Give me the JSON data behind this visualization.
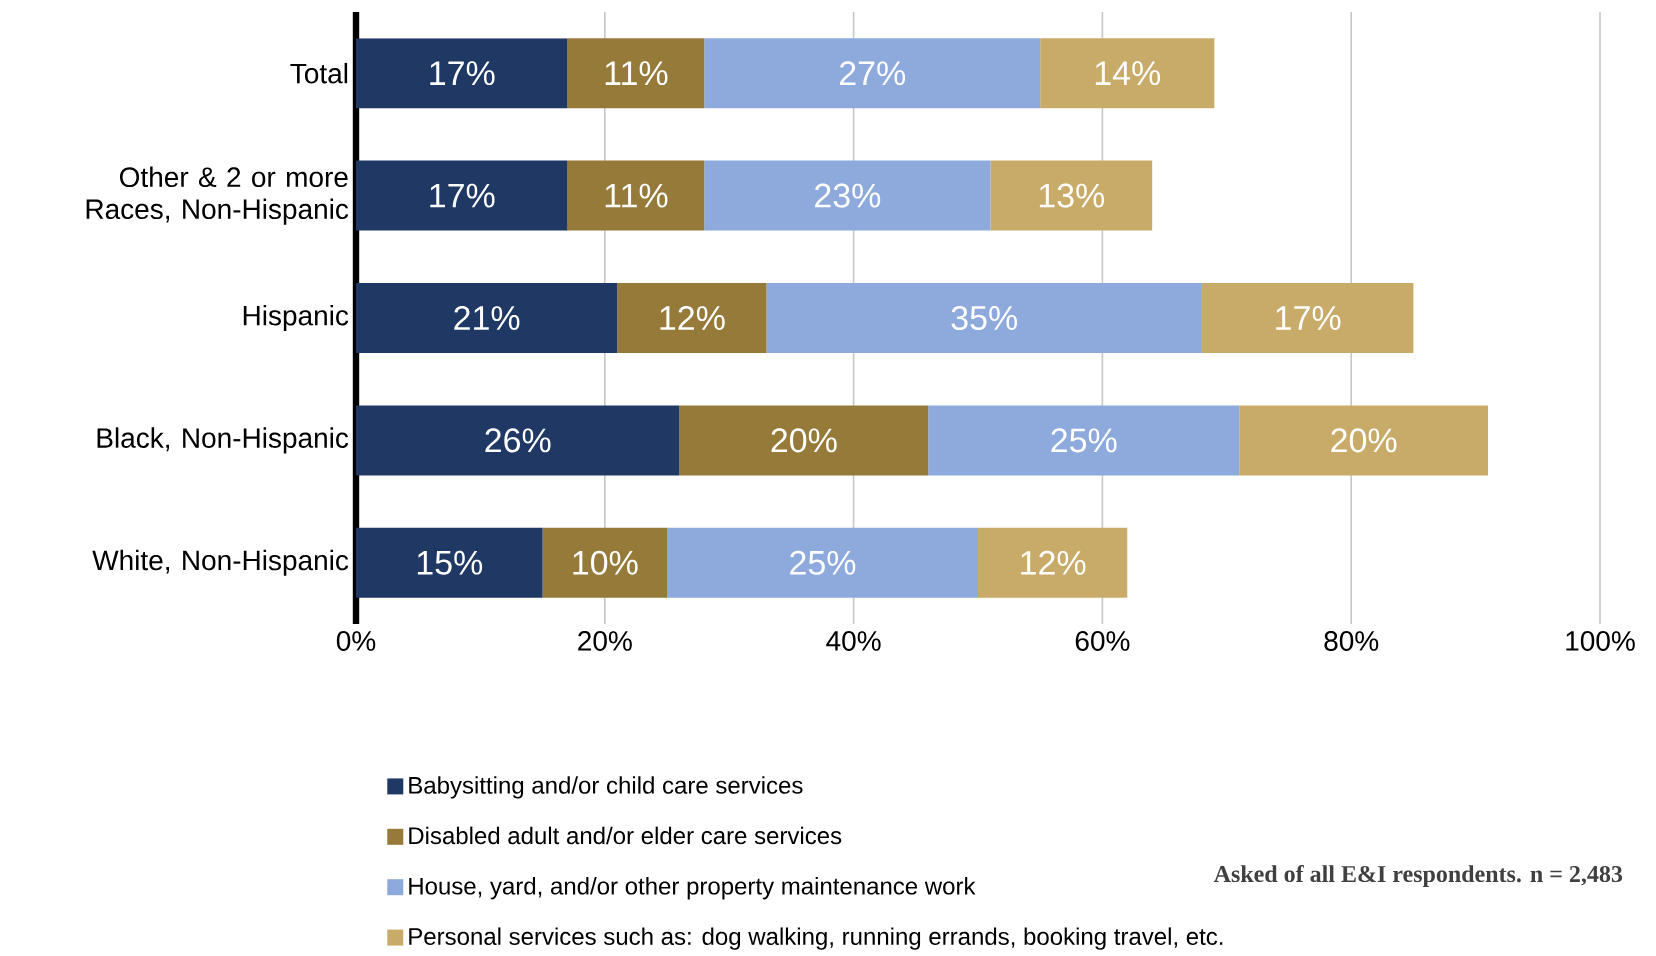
{
  "chart_data": {
    "type": "bar",
    "orientation": "horizontal",
    "stacked": true,
    "categories": [
      "Total",
      "Other & 2 or more Races, Non-Hispanic",
      "Hispanic",
      "Black, Non-Hispanic",
      "White, Non-Hispanic"
    ],
    "series": [
      {
        "name": "Babysitting and/or child care services",
        "color": "#1f3864",
        "values": [
          17,
          17,
          21,
          26,
          15
        ],
        "value_labels": [
          "17%",
          "17%",
          "21%",
          "26%",
          "15%"
        ]
      },
      {
        "name": "Disabled adult and/or elder care services",
        "color": "#967a3a",
        "values": [
          11,
          11,
          12,
          20,
          10
        ],
        "value_labels": [
          "11%",
          "11%",
          "12%",
          "20%",
          "10%"
        ]
      },
      {
        "name": "House, yard, and/or other property maintenance work",
        "color": "#8eaadc",
        "values": [
          27,
          23,
          35,
          25,
          25
        ],
        "value_labels": [
          "27%",
          "23%",
          "35%",
          "25%",
          "25%"
        ]
      },
      {
        "name": "Personal services such as: dog walking, running errands, booking travel, etc.",
        "color": "#c9ab69",
        "values": [
          14,
          13,
          17,
          20,
          12
        ],
        "value_labels": [
          "14%",
          "13%",
          "17%",
          "20%",
          "12%"
        ]
      }
    ],
    "xlim": [
      0,
      100
    ],
    "xticks": [
      {
        "value": 0,
        "label": "0%"
      },
      {
        "value": 20,
        "label": "20%"
      },
      {
        "value": 40,
        "label": "40%"
      },
      {
        "value": 60,
        "label": "60%"
      },
      {
        "value": 80,
        "label": "80%"
      },
      {
        "value": 100,
        "label": "100%"
      }
    ],
    "grid": "x",
    "legend": "bottom",
    "annotations": [
      "Asked of all E&I respondents. n = 2,483"
    ]
  }
}
